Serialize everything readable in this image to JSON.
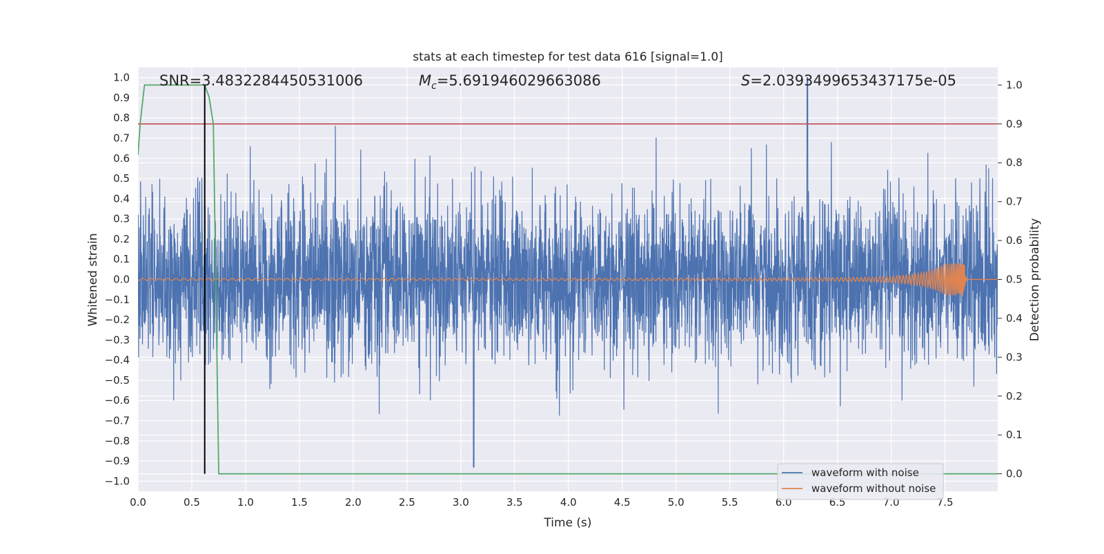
{
  "chart_data": {
    "type": "line",
    "title": "stats at each timestep for test data 616 [signal=1.0]",
    "xlabel": "Time (s)",
    "ylabel_left": "Whitened strain",
    "ylabel_right": "Detection probability",
    "xlim": [
      0.0,
      7.99
    ],
    "ylim_left": [
      -1.05,
      1.05
    ],
    "ylim_right": [
      -0.045,
      1.045
    ],
    "x_ticks": [
      "0.0",
      "0.5",
      "1.0",
      "1.5",
      "2.0",
      "2.5",
      "3.0",
      "3.5",
      "4.0",
      "4.5",
      "5.0",
      "5.5",
      "6.0",
      "6.5",
      "7.0",
      "7.5"
    ],
    "y_ticks_left": [
      "1.0",
      "0.9",
      "0.8",
      "0.7",
      "0.6",
      "0.5",
      "0.4",
      "0.3",
      "0.2",
      "0.1",
      "0.0",
      "−0.1",
      "−0.2",
      "−0.3",
      "−0.4",
      "−0.5",
      "−0.6",
      "−0.7",
      "−0.8",
      "−0.9",
      "−1.0"
    ],
    "y_ticks_right": [
      "1.0",
      "0.9",
      "0.8",
      "0.7",
      "0.6",
      "0.5",
      "0.4",
      "0.3",
      "0.2",
      "0.1",
      "0.0"
    ],
    "grid": true,
    "legend_position": "bottom-right",
    "annotations": {
      "snr": "SNR=3.4832284450531006",
      "mc_symbol": "M",
      "mc_sub": "c",
      "mc_value": "=5.691946029663086",
      "s_symbol": "S",
      "s_value": "=2.0393499653437175e-05"
    },
    "threshold_line": {
      "axis": "right",
      "value": 0.9,
      "color": "#c44e52"
    },
    "detection_marker": {
      "x": 0.62,
      "color": "#000000"
    },
    "series": [
      {
        "name": "waveform with noise",
        "axis": "left",
        "color": "#4c72b0",
        "kind": "noise",
        "sigma": 0.2,
        "peak_abs": 1.0,
        "peak_x": 6.22,
        "min_value": -0.93,
        "min_x": 3.12
      },
      {
        "name": "waveform without noise",
        "axis": "left",
        "color": "#dd8452",
        "kind": "chirp",
        "start_x": 0.0,
        "merger_x": 7.68,
        "start_amplitude": 0.005,
        "peak_amplitude": 0.08
      },
      {
        "name": "detection probability",
        "axis": "right",
        "color": "#55a868",
        "x": [
          0.0,
          0.02,
          0.06,
          0.12,
          0.2,
          0.3,
          0.4,
          0.5,
          0.6,
          0.62,
          0.66,
          0.7,
          0.75,
          0.8,
          1.0,
          2.0,
          3.0,
          4.0,
          5.0,
          6.0,
          7.0,
          7.99
        ],
        "values": [
          0.82,
          0.9,
          1.0,
          1.0,
          1.0,
          1.0,
          1.0,
          1.0,
          1.0,
          1.0,
          0.97,
          0.9,
          0.0,
          0.0,
          0.0,
          0.0,
          0.0,
          0.0,
          0.0,
          0.0,
          0.0,
          0.0
        ]
      }
    ]
  },
  "legend": {
    "items": [
      {
        "label": "waveform with noise",
        "color": "#4c72b0"
      },
      {
        "label": "waveform without noise",
        "color": "#dd8452"
      }
    ]
  }
}
